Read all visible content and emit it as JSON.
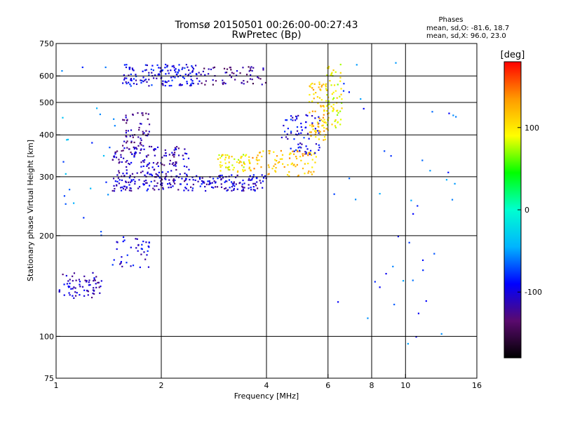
{
  "header": {
    "title_line1": "Tromsø 20150501 00:26:00-00:27:43",
    "title_line2": "RwPretec (Bp)",
    "stats_title": "Phases",
    "stats_line1": "mean, sd,O: -81.6, 18.7",
    "stats_line2": "mean, sd,X:  96.0, 23.0"
  },
  "chart_data": {
    "type": "scatter",
    "xlabel": "Frequency [MHz]",
    "ylabel": "Stationary phase Virtual Height [km]",
    "xscale": "log",
    "yscale": "log",
    "xlim": [
      1,
      16
    ],
    "ylim": [
      75,
      750
    ],
    "x_ticks": [
      1,
      2,
      4,
      6,
      8,
      10,
      16
    ],
    "y_ticks": [
      75,
      100,
      200,
      300,
      400,
      500,
      600,
      750
    ],
    "x_grid": [
      2,
      4,
      6,
      8,
      10
    ],
    "y_grid": [
      100,
      200,
      300,
      400,
      500,
      600
    ],
    "grid": true,
    "colorbar": {
      "label": "[deg]",
      "min": -180,
      "max": 180,
      "ticks": [
        100,
        0,
        -100
      ],
      "colors": [
        "#000000",
        "#5a0a6e",
        "#0000ff",
        "#00b4ff",
        "#00ffd0",
        "#00ff00",
        "#ffff00",
        "#ff9a00",
        "#ff0000"
      ]
    },
    "series": [
      {
        "clusters": [
          {
            "fmin": 1.02,
            "fmax": 1.35,
            "hmin": 130,
            "hmax": 155,
            "n": 70,
            "phase": -110
          },
          {
            "fmin": 1.45,
            "fmax": 1.85,
            "hmin": 160,
            "hmax": 200,
            "n": 40,
            "phase": -100
          },
          {
            "fmin": 1.45,
            "fmax": 4.0,
            "hmin": 272,
            "hmax": 305,
            "n": 240,
            "phase": -105
          },
          {
            "fmin": 1.45,
            "fmax": 2.4,
            "hmin": 305,
            "hmax": 370,
            "n": 140,
            "phase": -112
          },
          {
            "fmin": 1.55,
            "fmax": 1.85,
            "hmin": 370,
            "hmax": 470,
            "n": 55,
            "phase": -120
          },
          {
            "fmin": 1.55,
            "fmax": 2.6,
            "hmin": 560,
            "hmax": 650,
            "n": 150,
            "phase": -95
          },
          {
            "fmin": 2.6,
            "fmax": 4.0,
            "hmin": 565,
            "hmax": 640,
            "n": 60,
            "phase": -125
          },
          {
            "fmin": 2.9,
            "fmax": 3.6,
            "hmin": 310,
            "hmax": 350,
            "n": 60,
            "phase": 95
          },
          {
            "fmin": 3.6,
            "fmax": 5.6,
            "hmin": 300,
            "hmax": 360,
            "n": 90,
            "phase": 120
          },
          {
            "fmin": 4.4,
            "fmax": 5.7,
            "hmin": 350,
            "hmax": 460,
            "n": 70,
            "phase": -95
          },
          {
            "fmin": 5.3,
            "fmax": 6.0,
            "hmin": 380,
            "hmax": 580,
            "n": 80,
            "phase": 115
          },
          {
            "fmin": 5.9,
            "fmax": 6.6,
            "hmin": 420,
            "hmax": 650,
            "n": 70,
            "phase": 90
          },
          {
            "fmin": 1.0,
            "fmax": 1.5,
            "hmin": 200,
            "hmax": 640,
            "n": 25,
            "phase": -60
          },
          {
            "fmin": 6.0,
            "fmax": 14.0,
            "hmin": 90,
            "hmax": 660,
            "n": 45,
            "phase": -70
          }
        ]
      }
    ]
  }
}
